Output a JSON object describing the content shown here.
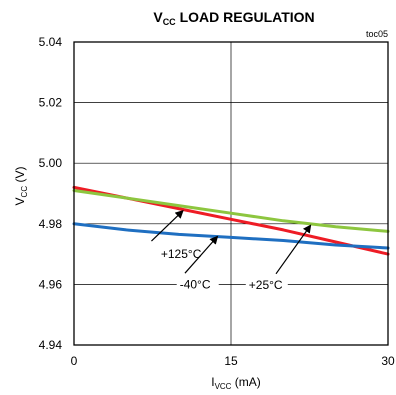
{
  "chart_data": {
    "type": "line",
    "title": {
      "main": "V",
      "sub": "CC",
      "rest": " LOAD REGULATION"
    },
    "tag": "toc05",
    "xlabel": {
      "main": "I",
      "sub": "VCC",
      "rest": " (mA)"
    },
    "ylabel": {
      "main": "V",
      "sub": "CC",
      "rest": " (V)"
    },
    "xlim": [
      0,
      30
    ],
    "ylim": [
      4.94,
      5.04
    ],
    "x_ticks": [
      {
        "value": 0,
        "label": "0"
      },
      {
        "value": 15,
        "label": "15"
      },
      {
        "value": 30,
        "label": "30"
      }
    ],
    "y_ticks": [
      {
        "value": 4.94,
        "label": "4.94"
      },
      {
        "value": 4.96,
        "label": "4.96"
      },
      {
        "value": 4.98,
        "label": "4.98"
      },
      {
        "value": 5.0,
        "label": "5.00"
      },
      {
        "value": 5.02,
        "label": "5.02"
      },
      {
        "value": 5.04,
        "label": "5.04"
      }
    ],
    "grid": true,
    "series": [
      {
        "name": "+125°C",
        "color": "#ee1c25",
        "x": [
          0,
          5,
          10,
          15,
          20,
          25,
          30
        ],
        "y": [
          4.992,
          4.9885,
          4.985,
          4.9815,
          4.978,
          4.974,
          4.97
        ]
      },
      {
        "name": "-40°C",
        "color": "#1f6fc1",
        "x": [
          0,
          5,
          10,
          15,
          20,
          25,
          30
        ],
        "y": [
          4.98,
          4.978,
          4.9765,
          4.9755,
          4.9745,
          4.973,
          4.972
        ]
      },
      {
        "name": "+25°C",
        "color": "#8dc63f",
        "x": [
          0,
          5,
          10,
          15,
          20,
          25,
          30
        ],
        "y": [
          4.991,
          4.9885,
          4.986,
          4.9835,
          4.981,
          4.979,
          4.9775
        ]
      }
    ],
    "annotations": [
      {
        "text": "+125°C",
        "series": "+125°C",
        "text_x": 8.3,
        "text_y": 4.9687,
        "point_x": 10.4,
        "point_y": 4.9843,
        "tail_x": 7.4,
        "tail_y": 4.9743
      },
      {
        "text": "-40°C",
        "series": "-40°C",
        "text_x": 10.1,
        "text_y": 4.9587,
        "point_x": 13.7,
        "point_x_note": "",
        "point_y": 4.9758,
        "tail_x": 10.6,
        "tail_y": 4.9637
      },
      {
        "text": "+25°C",
        "series": "+25°C",
        "text_x": 16.7,
        "text_y": 4.9585,
        "point_x": 22.6,
        "point_y": 4.9795,
        "tail_x": 19.3,
        "tail_y": 4.9635
      }
    ]
  }
}
